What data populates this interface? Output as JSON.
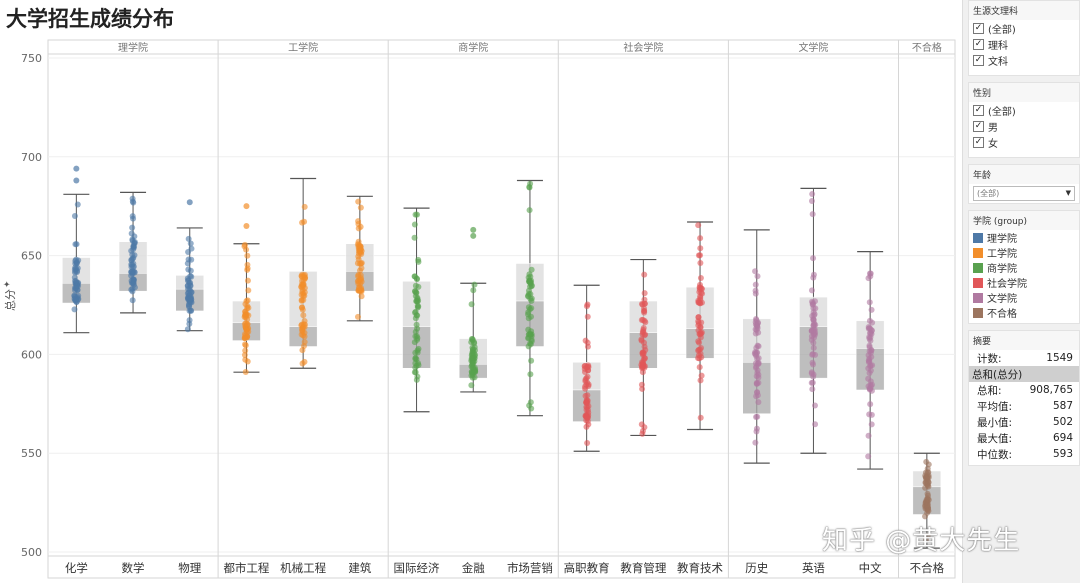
{
  "title": "大学招生成绩分布",
  "chart_data": {
    "type": "box",
    "title": "大学招生成绩分布",
    "ylabel": "总分",
    "ylim": [
      498,
      752
    ],
    "yticks": [
      500,
      550,
      600,
      650,
      700,
      750
    ],
    "groups": [
      {
        "label": "理学院",
        "color": "#4e79a7",
        "categories": [
          {
            "name": "化学",
            "min": 611,
            "q1": 626,
            "median": 636,
            "q3": 649,
            "max": 681,
            "points": [
              694,
              688
            ]
          },
          {
            "name": "数学",
            "min": 621,
            "q1": 632,
            "median": 641,
            "q3": 657,
            "max": 682,
            "points": []
          },
          {
            "name": "物理",
            "min": 612,
            "q1": 622,
            "median": 633,
            "q3": 640,
            "max": 664,
            "points": [
              677
            ]
          }
        ]
      },
      {
        "label": "工学院",
        "color": "#f28e2b",
        "categories": [
          {
            "name": "都市工程",
            "min": 591,
            "q1": 607,
            "median": 616,
            "q3": 627,
            "max": 656,
            "points": [
              675,
              665
            ]
          },
          {
            "name": "机械工程",
            "min": 593,
            "q1": 604,
            "median": 614,
            "q3": 642,
            "max": 689,
            "points": []
          },
          {
            "name": "建筑",
            "min": 617,
            "q1": 632,
            "median": 642,
            "q3": 656,
            "max": 680,
            "points": []
          }
        ]
      },
      {
        "label": "商学院",
        "color": "#59a14f",
        "categories": [
          {
            "name": "国际经济",
            "min": 571,
            "q1": 593,
            "median": 614,
            "q3": 637,
            "max": 674,
            "points": []
          },
          {
            "name": "金融",
            "min": 581,
            "q1": 588,
            "median": 595,
            "q3": 608,
            "max": 636,
            "points": [
              663,
              660
            ]
          },
          {
            "name": "市场营销",
            "min": 569,
            "q1": 604,
            "median": 627,
            "q3": 646,
            "max": 688,
            "points": []
          }
        ]
      },
      {
        "label": "社会学院",
        "color": "#e15759",
        "categories": [
          {
            "name": "高职教育",
            "min": 551,
            "q1": 566,
            "median": 582,
            "q3": 596,
            "max": 635,
            "points": []
          },
          {
            "name": "教育管理",
            "min": 559,
            "q1": 593,
            "median": 611,
            "q3": 627,
            "max": 648,
            "points": []
          },
          {
            "name": "教育技术",
            "min": 562,
            "q1": 598,
            "median": 613,
            "q3": 634,
            "max": 667,
            "points": []
          }
        ]
      },
      {
        "label": "文学院",
        "color": "#b07aa1",
        "categories": [
          {
            "name": "历史",
            "min": 545,
            "q1": 570,
            "median": 596,
            "q3": 618,
            "max": 663,
            "points": []
          },
          {
            "name": "英语",
            "min": 550,
            "q1": 588,
            "median": 614,
            "q3": 629,
            "max": 684,
            "points": []
          },
          {
            "name": "中文",
            "min": 542,
            "q1": 582,
            "median": 603,
            "q3": 617,
            "max": 652,
            "points": []
          }
        ]
      },
      {
        "label": "不合格",
        "color": "#9c755f",
        "categories": [
          {
            "name": "不合格",
            "min": 502,
            "q1": 519,
            "median": 533,
            "q3": 541,
            "max": 550,
            "points": []
          }
        ]
      }
    ]
  },
  "sidebar": {
    "filter1": {
      "title": "生源文理科",
      "options": [
        "(全部)",
        "理科",
        "文科"
      ]
    },
    "filter2": {
      "title": "性别",
      "options": [
        "(全部)",
        "男",
        "女"
      ]
    },
    "filter3": {
      "title": "年龄",
      "value": "(全部)"
    },
    "legend": {
      "title": "学院 (group)",
      "items": [
        {
          "label": "理学院",
          "color": "#4e79a7"
        },
        {
          "label": "工学院",
          "color": "#f28e2b"
        },
        {
          "label": "商学院",
          "color": "#59a14f"
        },
        {
          "label": "社会学院",
          "color": "#e15759"
        },
        {
          "label": "文学院",
          "color": "#b07aa1"
        },
        {
          "label": "不合格",
          "color": "#9c755f"
        }
      ]
    },
    "summary": {
      "title": "摘要",
      "rows": [
        {
          "label": "计数:",
          "value": "1549"
        },
        {
          "label": "总和(总分)",
          "value": ""
        },
        {
          "label": "总和:",
          "value": "908,765"
        },
        {
          "label": "平均值:",
          "value": "587"
        },
        {
          "label": "最小值:",
          "value": "502"
        },
        {
          "label": "最大值:",
          "value": "694"
        },
        {
          "label": "中位数:",
          "value": "593"
        }
      ]
    }
  },
  "watermark": "知乎 @黄大先生"
}
